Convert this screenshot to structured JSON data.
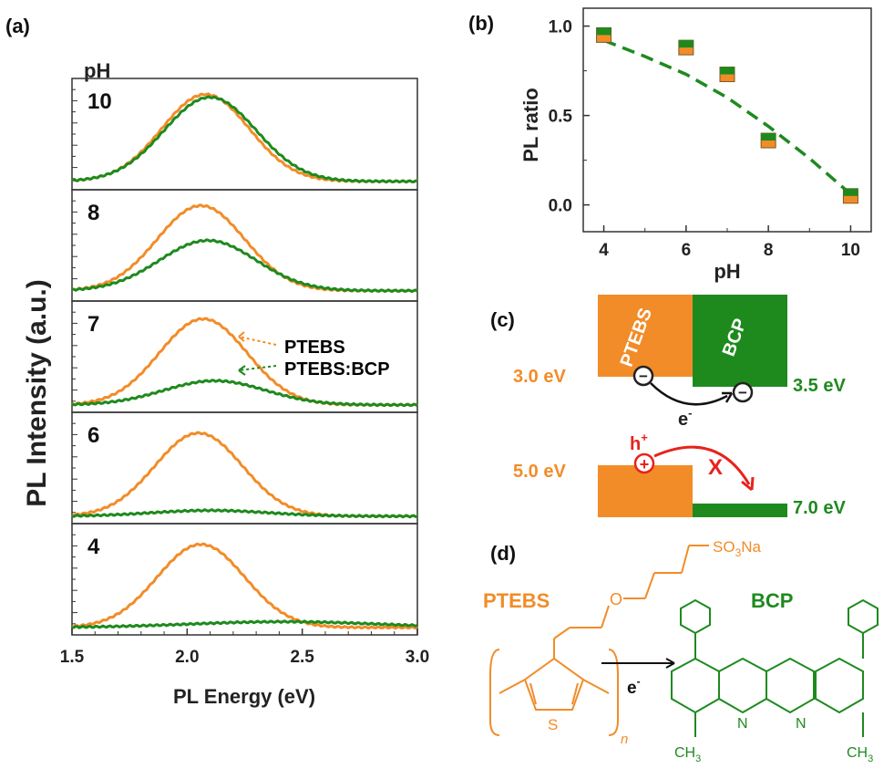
{
  "colors": {
    "orange": "#f28c28",
    "green": "#1e8a1e",
    "red": "#e8221c",
    "axis": "#333333"
  },
  "panels": {
    "a": "(a)",
    "b": "(b)",
    "c": "(c)",
    "d": "(d)"
  },
  "chart_data": [
    {
      "type": "line",
      "panel": "a",
      "header": "pH",
      "xlabel": "PL Energy (eV)",
      "ylabel": "PL Intensity (a.u.)",
      "xlim": [
        1.5,
        3.0
      ],
      "xticks": [
        "1.5",
        "2.0",
        "2.5",
        "3.0"
      ],
      "legend": [
        "PTEBS",
        "PTEBS:BCP"
      ],
      "subplots": [
        {
          "pH": "10",
          "series": [
            {
              "name": "PTEBS",
              "color": "orange",
              "peak": 2.08,
              "amp": 0.9,
              "sigma": 0.19,
              "base": 0.03
            },
            {
              "name": "PTEBS:BCP",
              "color": "green",
              "peak": 2.1,
              "amp": 0.87,
              "sigma": 0.2,
              "base": 0.03
            }
          ]
        },
        {
          "pH": "8",
          "series": [
            {
              "name": "PTEBS",
              "color": "orange",
              "peak": 2.06,
              "amp": 0.88,
              "sigma": 0.19,
              "base": 0.05
            },
            {
              "name": "PTEBS:BCP",
              "color": "green",
              "peak": 2.09,
              "amp": 0.52,
              "sigma": 0.21,
              "base": 0.05
            }
          ]
        },
        {
          "pH": "7",
          "series": [
            {
              "name": "PTEBS",
              "color": "orange",
              "peak": 2.07,
              "amp": 0.89,
              "sigma": 0.19,
              "base": 0.02
            },
            {
              "name": "PTEBS:BCP",
              "color": "green",
              "peak": 2.12,
              "amp": 0.25,
              "sigma": 0.22,
              "base": 0.02
            }
          ]
        },
        {
          "pH": "6",
          "series": [
            {
              "name": "PTEBS",
              "color": "orange",
              "peak": 2.05,
              "amp": 0.86,
              "sigma": 0.19,
              "base": 0.02
            },
            {
              "name": "PTEBS:BCP",
              "color": "green",
              "peak": 2.1,
              "amp": 0.06,
              "sigma": 0.25,
              "base": 0.02
            }
          ]
        },
        {
          "pH": "4",
          "series": [
            {
              "name": "PTEBS",
              "color": "orange",
              "peak": 2.06,
              "amp": 0.86,
              "sigma": 0.19,
              "base": 0.02
            },
            {
              "name": "PTEBS:BCP",
              "color": "green",
              "peak": 2.42,
              "amp": 0.06,
              "sigma": 0.4,
              "base": 0.02
            }
          ]
        }
      ]
    },
    {
      "type": "scatter",
      "panel": "b",
      "xlabel": "pH",
      "ylabel": "PL ratio",
      "xlim": [
        3.5,
        10.5
      ],
      "ylim": [
        -0.15,
        1.1
      ],
      "xticks": [
        "4",
        "6",
        "8",
        "10"
      ],
      "yticks": [
        "0.0",
        "0.5",
        "1.0"
      ],
      "x": [
        4,
        6,
        7,
        8,
        10
      ],
      "y": [
        0.95,
        0.88,
        0.73,
        0.36,
        0.05
      ],
      "fit": {
        "style": "dashed",
        "color": "green",
        "x": [
          4,
          5,
          6,
          7,
          8,
          9,
          10
        ],
        "y": [
          0.92,
          0.83,
          0.73,
          0.6,
          0.44,
          0.26,
          0.06
        ]
      }
    }
  ],
  "diagram_c": {
    "ptebs_label": "PTEBS",
    "bcp_label": "BCP",
    "lumo_ptebs": "3.0 eV",
    "lumo_bcp": "3.5 eV",
    "homo_ptebs": "5.0 eV",
    "homo_bcp": "7.0 eV",
    "electron": "e",
    "electron_sup": "-",
    "hole": "h",
    "hole_sup": "+",
    "blocked": "X",
    "minus": "−",
    "plus": "+"
  },
  "structure_d": {
    "ptebs_label": "PTEBS",
    "bcp_label": "BCP",
    "sulfonate": "SO",
    "sulfonate_sub": "3",
    "sulfonate_tail": "Na",
    "oxygen": "O",
    "sulfur": "S",
    "repeat": "n",
    "electron": "e",
    "electron_sup": "-",
    "nitrogen": "N",
    "methyl": "CH",
    "methyl_sub": "3"
  }
}
